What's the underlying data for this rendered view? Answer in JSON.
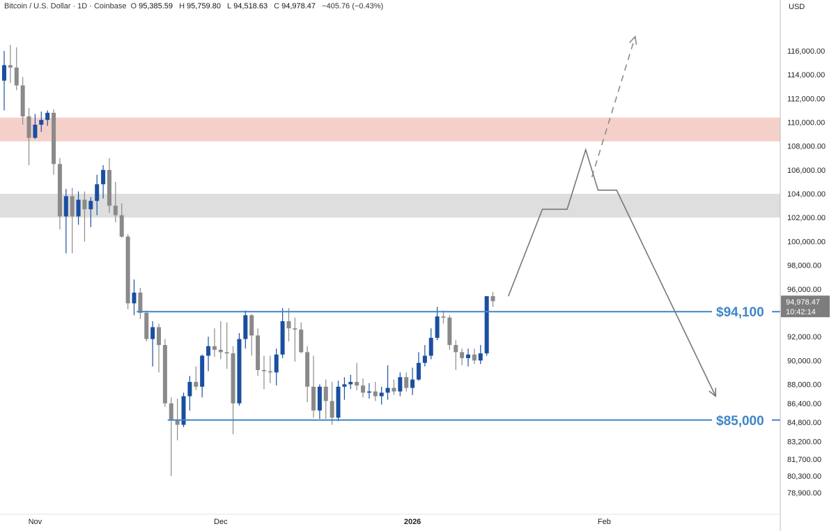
{
  "header": {
    "symbol": "Bitcoin / U.S. Dollar · 1D · Coinbase",
    "open_label": "O",
    "open": "95,385.59",
    "high_label": "H",
    "high": "95,759.80",
    "low_label": "L",
    "low": "94,518.63",
    "close_label": "C",
    "close": "94,978.47",
    "change": "−405.76 (−0.43%)"
  },
  "price_axis": {
    "unit": "USD",
    "last_price": "94,978.47",
    "countdown": "10:42:14"
  },
  "colors": {
    "up": "#1a4fa0",
    "down": "#8a8a8a",
    "level_line": "#3f86c8",
    "resistance_zone": "#f5d0ca",
    "support_zone": "#dedede",
    "projection": "#777777",
    "price_tag": "#7d7d7d"
  },
  "chart_data": {
    "type": "candlestick",
    "title": "Bitcoin / U.S. Dollar · 1D · Coinbase",
    "y_axis": {
      "ticks": [
        116000,
        114000,
        112000,
        110000,
        108000,
        106000,
        104000,
        102000,
        100000,
        98000,
        96000,
        92000,
        90000,
        88000,
        86400,
        84800,
        83200,
        81700,
        80300,
        78900
      ],
      "tick_labels": [
        "116,000.00",
        "114,000.00",
        "112,000.00",
        "110,000.00",
        "108,000.00",
        "106,000.00",
        "104,000.00",
        "102,000.00",
        "100,000.00",
        "98,000.00",
        "96,000.00",
        "92,000.00",
        "90,000.00",
        "88,000.00",
        "86,400.00",
        "84,800.00",
        "83,200.00",
        "81,700.00",
        "80,300.00",
        "78,900.00"
      ]
    },
    "x_axis": {
      "ticks": [
        {
          "label": "Nov",
          "bar": 5,
          "bold": false
        },
        {
          "label": "Dec",
          "bar": 35,
          "bold": false
        },
        {
          "label": "2026",
          "bar": 66,
          "bold": true
        },
        {
          "label": "Feb",
          "bar": 97,
          "bold": false
        }
      ]
    },
    "zones": [
      {
        "name": "resistance",
        "from": 108400,
        "to": 110400,
        "color": "#f5d0ca"
      },
      {
        "name": "support",
        "from": 102000,
        "to": 104000,
        "color": "#dedede"
      }
    ],
    "levels": [
      {
        "value": 94100,
        "label": "$94,100",
        "from_bar": 22
      },
      {
        "value": 85000,
        "label": "$85,000",
        "from_bar": 27
      }
    ],
    "candles": [
      [
        113500,
        116000,
        111000,
        114800
      ],
      [
        114800,
        116500,
        113300,
        114600
      ],
      [
        114600,
        116300,
        112700,
        113100
      ],
      [
        113100,
        113800,
        109800,
        110500
      ],
      [
        110500,
        111200,
        106400,
        108700
      ],
      [
        108700,
        110700,
        108600,
        109800
      ],
      [
        109800,
        110900,
        109200,
        110200
      ],
      [
        110200,
        111000,
        109700,
        110800
      ],
      [
        110800,
        111100,
        105600,
        106500
      ],
      [
        106500,
        107000,
        101000,
        102100
      ],
      [
        102100,
        104400,
        99000,
        103800
      ],
      [
        103800,
        104500,
        99000,
        102100
      ],
      [
        102100,
        104200,
        101400,
        103500
      ],
      [
        103500,
        104200,
        100000,
        102700
      ],
      [
        102700,
        103700,
        101200,
        103400
      ],
      [
        103400,
        105600,
        102200,
        104800
      ],
      [
        104800,
        106400,
        103600,
        106000
      ],
      [
        106000,
        107000,
        102400,
        103000
      ],
      [
        103000,
        105000,
        101600,
        102200
      ],
      [
        102200,
        103200,
        100300,
        100400
      ],
      [
        100400,
        100600,
        94300,
        94800
      ],
      [
        94800,
        96800,
        93800,
        95700
      ],
      [
        95700,
        96100,
        93500,
        94000
      ],
      [
        94000,
        94200,
        91600,
        91800
      ],
      [
        91800,
        93300,
        89500,
        92800
      ],
      [
        92800,
        93100,
        89000,
        91300
      ],
      [
        91300,
        91800,
        86100,
        86400
      ],
      [
        86400,
        86900,
        80300,
        85000
      ],
      [
        85000,
        86800,
        83300,
        84600
      ],
      [
        84600,
        87300,
        84400,
        87000
      ],
      [
        87000,
        88700,
        85800,
        88200
      ],
      [
        88200,
        89500,
        87500,
        87800
      ],
      [
        87800,
        90500,
        86900,
        90400
      ],
      [
        90400,
        92000,
        89100,
        91200
      ],
      [
        91200,
        92700,
        90300,
        90900
      ],
      [
        90900,
        93300,
        90100,
        90700
      ],
      [
        90700,
        93200,
        89300,
        90600
      ],
      [
        90600,
        91200,
        83800,
        86400
      ],
      [
        86400,
        92300,
        86200,
        91800
      ],
      [
        91800,
        94200,
        91000,
        93800
      ],
      [
        93800,
        93900,
        90400,
        92100
      ],
      [
        92100,
        92700,
        88700,
        89200
      ],
      [
        89200,
        90400,
        87600,
        89100
      ],
      [
        89100,
        90400,
        88100,
        89000
      ],
      [
        89000,
        91000,
        87900,
        90500
      ],
      [
        90500,
        94400,
        90200,
        93300
      ],
      [
        93300,
        94400,
        91600,
        92700
      ],
      [
        92700,
        93600,
        89900,
        92600
      ],
      [
        92600,
        93200,
        90600,
        90700
      ],
      [
        90700,
        91200,
        86500,
        87800
      ],
      [
        87800,
        90400,
        85200,
        85800
      ],
      [
        85800,
        88000,
        85100,
        87800
      ],
      [
        87800,
        88400,
        85100,
        86600
      ],
      [
        86600,
        88200,
        84600,
        85200
      ],
      [
        85200,
        88300,
        84900,
        87800
      ],
      [
        87800,
        88600,
        86700,
        88000
      ],
      [
        88000,
        88800,
        87600,
        88200
      ],
      [
        88200,
        89800,
        87500,
        87900
      ],
      [
        87900,
        88500,
        86900,
        87300
      ],
      [
        87300,
        88100,
        86800,
        87400
      ],
      [
        87400,
        88200,
        86600,
        87000
      ],
      [
        87000,
        87800,
        86300,
        87300
      ],
      [
        87300,
        89600,
        86700,
        87700
      ],
      [
        87700,
        88400,
        87100,
        87400
      ],
      [
        87400,
        89000,
        87000,
        88600
      ],
      [
        88600,
        89000,
        87400,
        87700
      ],
      [
        87700,
        89400,
        87100,
        88400
      ],
      [
        88400,
        90700,
        88300,
        89800
      ],
      [
        89800,
        91300,
        89500,
        90400
      ],
      [
        90400,
        92700,
        90100,
        91900
      ],
      [
        91900,
        94500,
        91700,
        93700
      ],
      [
        93700,
        94200,
        93100,
        93600
      ],
      [
        93600,
        93800,
        90900,
        91300
      ],
      [
        91300,
        91700,
        89200,
        90700
      ],
      [
        90700,
        91000,
        89600,
        90200
      ],
      [
        90200,
        91000,
        89500,
        90500
      ],
      [
        90500,
        91000,
        89700,
        90000
      ],
      [
        90000,
        91300,
        89700,
        90600
      ],
      [
        90600,
        95400,
        90400,
        95400
      ],
      [
        95400,
        95760,
        94500,
        94980
      ]
    ],
    "projection": [
      {
        "bar": 81.5,
        "price": 95400
      },
      {
        "bar": 87,
        "price": 102700
      },
      {
        "bar": 91,
        "price": 102700
      },
      {
        "bar": 94,
        "price": 107700
      },
      {
        "bar": 96,
        "price": 104300
      },
      {
        "bar": 99,
        "price": 104300
      },
      {
        "bar": 115,
        "price": 87000
      }
    ],
    "projection_arrow": {
      "at_bar": 115,
      "price": 87000
    },
    "projection_dashed": [
      {
        "bar": 95,
        "price": 105400
      },
      {
        "bar": 102,
        "price": 117200
      }
    ]
  }
}
